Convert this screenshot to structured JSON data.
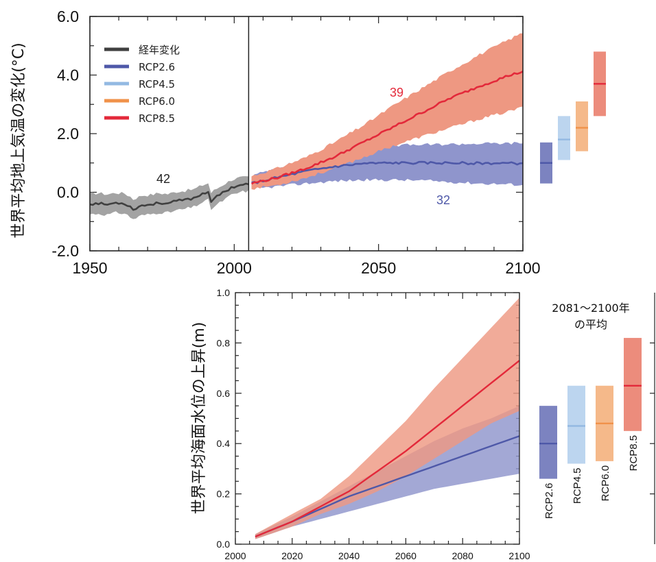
{
  "chart_data": [
    {
      "type": "line",
      "ylabel": "世界平均地上気温の変化(°C)",
      "xlim": [
        1950,
        2100
      ],
      "ylim": [
        -2.0,
        6.0
      ],
      "x_ticks": [
        "1950",
        "2000",
        "2050",
        "2100"
      ],
      "y_ticks": [
        "6.0",
        "4.0",
        "2.0",
        "0.0",
        "-2.0"
      ],
      "legend": {
        "placement": "top-left",
        "entries": [
          {
            "label": "経年変化",
            "color": "#404040"
          },
          {
            "label": "RCP2.6",
            "color": "#4e58a8"
          },
          {
            "label": "RCP4.5",
            "color": "#93b9e2"
          },
          {
            "label": "RCP6.0",
            "color": "#f0924a"
          },
          {
            "label": "RCP8.5",
            "color": "#e3293a"
          }
        ]
      },
      "annotations": [
        {
          "text": "42",
          "x": 1977,
          "y": 0.5,
          "color": "#222222"
        },
        {
          "text": "39",
          "x": 2057,
          "y": 3.4,
          "color": "#e3293a"
        },
        {
          "text": "32",
          "x": 2070,
          "y": -0.2,
          "color": "#4e58a8"
        }
      ],
      "series": [
        {
          "name": "経年変化",
          "color": "#404040",
          "band_color": "#a3a3a3",
          "x": [
            1950,
            1953,
            1956,
            1959,
            1962,
            1964,
            1965,
            1968,
            1971,
            1974,
            1977,
            1980,
            1983,
            1986,
            1989,
            1991,
            1992,
            1993,
            1996,
            1999,
            2002,
            2005
          ],
          "y": [
            -0.4,
            -0.38,
            -0.42,
            -0.36,
            -0.38,
            -0.5,
            -0.58,
            -0.45,
            -0.42,
            -0.36,
            -0.38,
            -0.3,
            -0.26,
            -0.2,
            -0.05,
            0.02,
            -0.3,
            -0.22,
            -0.02,
            0.16,
            0.25,
            0.28
          ],
          "lower": [
            -0.75,
            -0.73,
            -0.77,
            -0.7,
            -0.72,
            -0.85,
            -0.92,
            -0.79,
            -0.75,
            -0.69,
            -0.7,
            -0.62,
            -0.57,
            -0.5,
            -0.34,
            -0.27,
            -0.58,
            -0.5,
            -0.29,
            -0.1,
            0.0,
            0.05
          ],
          "upper": [
            -0.05,
            -0.03,
            -0.07,
            -0.02,
            -0.04,
            -0.15,
            -0.24,
            -0.11,
            -0.09,
            -0.03,
            -0.06,
            0.02,
            0.05,
            0.1,
            0.24,
            0.31,
            -0.02,
            0.06,
            0.25,
            0.42,
            0.5,
            0.51
          ]
        },
        {
          "name": "RCP2.6",
          "color": "#4e58a8",
          "band_color": "#8f95cc",
          "x": [
            2006,
            2015,
            2025,
            2035,
            2045,
            2055,
            2065,
            2075,
            2085,
            2095,
            2100
          ],
          "y": [
            0.3,
            0.5,
            0.72,
            0.88,
            0.98,
            1.0,
            1.0,
            1.0,
            0.99,
            0.99,
            0.98
          ],
          "lower": [
            0.1,
            0.2,
            0.3,
            0.38,
            0.42,
            0.42,
            0.4,
            0.35,
            0.3,
            0.27,
            0.25
          ],
          "upper": [
            0.55,
            0.85,
            1.12,
            1.38,
            1.55,
            1.6,
            1.62,
            1.64,
            1.66,
            1.67,
            1.68
          ]
        },
        {
          "name": "RCP8.5",
          "color": "#e3293a",
          "band_color": "#ee9882",
          "x": [
            2006,
            2015,
            2025,
            2035,
            2045,
            2055,
            2065,
            2075,
            2085,
            2095,
            2100
          ],
          "y": [
            0.3,
            0.5,
            0.82,
            1.22,
            1.72,
            2.22,
            2.72,
            3.22,
            3.62,
            3.98,
            4.12
          ],
          "lower": [
            0.12,
            0.25,
            0.5,
            0.82,
            1.2,
            1.58,
            1.9,
            2.2,
            2.5,
            2.75,
            2.9
          ],
          "upper": [
            0.55,
            0.82,
            1.2,
            1.72,
            2.3,
            2.95,
            3.55,
            4.15,
            4.7,
            5.2,
            5.45
          ]
        }
      ],
      "period_boxes": {
        "label": "2081〜2100年の平均",
        "items": [
          {
            "name": "RCP2.6",
            "mean": 1.0,
            "low": 0.3,
            "high": 1.7,
            "color": "#4e58a8",
            "fill": "#7c83c0"
          },
          {
            "name": "RCP4.5",
            "mean": 1.8,
            "low": 1.1,
            "high": 2.6,
            "color": "#93b9e2",
            "fill": "#bcd5ef"
          },
          {
            "name": "RCP6.0",
            "mean": 2.2,
            "low": 1.4,
            "high": 3.1,
            "color": "#f0924a",
            "fill": "#f5b98a"
          },
          {
            "name": "RCP8.5",
            "mean": 3.7,
            "low": 2.6,
            "high": 4.8,
            "color": "#e3293a",
            "fill": "#ec8c7c"
          }
        ]
      }
    },
    {
      "type": "line",
      "ylabel": "世界平均海面水位の上昇(m)",
      "xlim": [
        2000,
        2100
      ],
      "ylim": [
        0.0,
        1.0
      ],
      "x_ticks": [
        "2000",
        "2020",
        "2040",
        "2060",
        "2080",
        "2100"
      ],
      "y_ticks": [
        "1.0",
        "0.8",
        "0.6",
        "0.4",
        "0.2",
        "0.0"
      ],
      "series": [
        {
          "name": "RCP2.6",
          "color": "#4e58a8",
          "band_color": "#8f95cc",
          "x": [
            2007,
            2020,
            2030,
            2040,
            2050,
            2060,
            2070,
            2080,
            2090,
            2100
          ],
          "y": [
            0.03,
            0.09,
            0.14,
            0.19,
            0.23,
            0.27,
            0.31,
            0.35,
            0.39,
            0.43
          ],
          "lower": [
            0.02,
            0.07,
            0.1,
            0.13,
            0.16,
            0.19,
            0.22,
            0.24,
            0.26,
            0.28
          ],
          "upper": [
            0.04,
            0.11,
            0.17,
            0.23,
            0.29,
            0.35,
            0.41,
            0.46,
            0.5,
            0.55
          ]
        },
        {
          "name": "RCP8.5",
          "color": "#e3293a",
          "band_color": "#ee9882",
          "x": [
            2007,
            2020,
            2030,
            2040,
            2050,
            2060,
            2070,
            2080,
            2090,
            2100
          ],
          "y": [
            0.03,
            0.09,
            0.15,
            0.21,
            0.29,
            0.37,
            0.46,
            0.55,
            0.64,
            0.73
          ],
          "lower": [
            0.02,
            0.07,
            0.12,
            0.16,
            0.21,
            0.27,
            0.34,
            0.41,
            0.48,
            0.53
          ],
          "upper": [
            0.04,
            0.12,
            0.18,
            0.27,
            0.38,
            0.49,
            0.62,
            0.74,
            0.86,
            0.98
          ]
        }
      ],
      "period_boxes": {
        "label_line1": "2081〜2100年",
        "label_line2": "の平均",
        "items": [
          {
            "name": "RCP2.6",
            "mean": 0.4,
            "low": 0.26,
            "high": 0.55,
            "color": "#4e58a8",
            "fill": "#7c83c0"
          },
          {
            "name": "RCP4.5",
            "mean": 0.47,
            "low": 0.32,
            "high": 0.63,
            "color": "#93b9e2",
            "fill": "#bcd5ef"
          },
          {
            "name": "RCP6.0",
            "mean": 0.48,
            "low": 0.33,
            "high": 0.63,
            "color": "#f0924a",
            "fill": "#f5b98a"
          },
          {
            "name": "RCP8.5",
            "mean": 0.63,
            "low": 0.45,
            "high": 0.82,
            "color": "#e3293a",
            "fill": "#ec8c7c"
          }
        ]
      }
    }
  ]
}
